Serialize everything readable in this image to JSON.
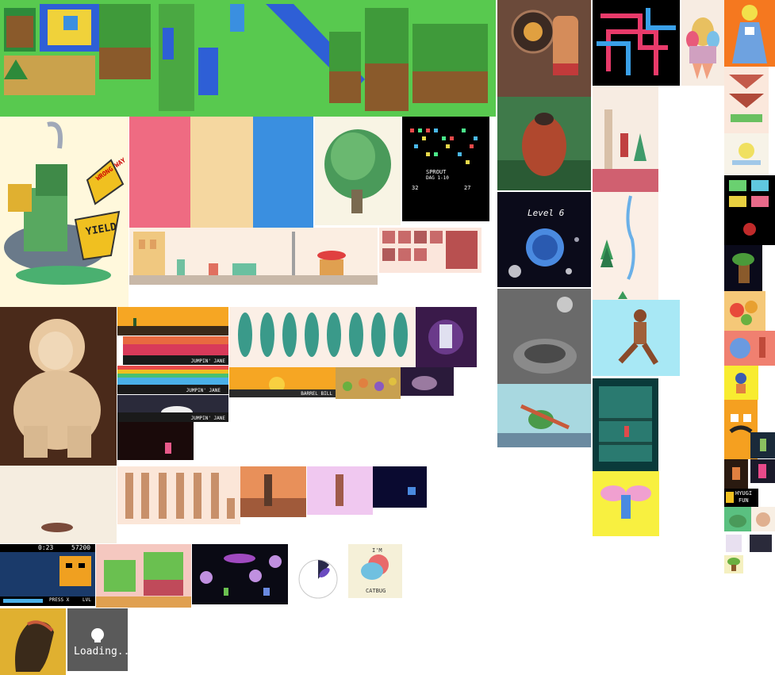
{
  "texts": {
    "yield": "YIELD",
    "wrong_way": "WRONG WAY",
    "level": "Level 6",
    "sprout_title": "SPROUT",
    "sprout_sub": "DAG 1-10",
    "sprout_left": "32",
    "sprout_right": "27",
    "jumpin_jane": "JUMPIN' JANE",
    "barrel_bill": "BARREL BILL",
    "timer": "0:23",
    "score": "57200",
    "press_x": "PRESS X",
    "lvl": "LVL",
    "im": "I'M",
    "catbug": "CATBUG",
    "hyugi": "HYUGI",
    "fun": "FUN",
    "loading": "Loading..."
  },
  "colors": {
    "grass": "#58c94f",
    "swatch_pink": "#ef6b82",
    "swatch_cream": "#f5d7a0",
    "swatch_blue": "#3a8fe0",
    "sky_orange": "#f6a623",
    "night": "#0b0b1a"
  }
}
